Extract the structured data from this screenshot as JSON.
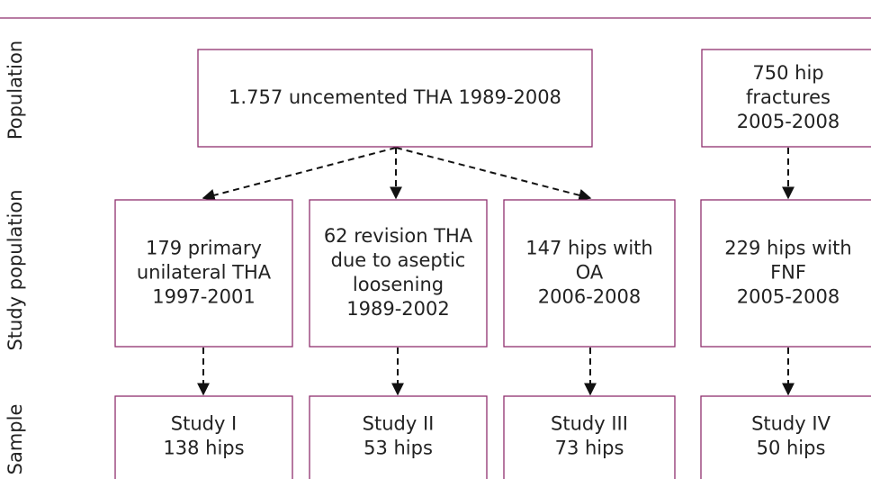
{
  "row_labels": [
    "Population",
    "Study population",
    "Sample"
  ],
  "nodes": [
    {
      "lines": [
        "1.757 uncemented THA 1989-2008"
      ]
    },
    {
      "lines": [
        "750 hip",
        "fractures",
        "2005-2008"
      ]
    },
    {
      "lines": [
        "179 primary",
        "unilateral THA",
        "1997-2001"
      ]
    },
    {
      "lines": [
        "62 revision THA",
        "due to aseptic",
        "loosening",
        "1989-2002"
      ]
    },
    {
      "lines": [
        "147 hips with",
        "OA",
        "2006-2008"
      ]
    },
    {
      "lines": [
        "229 hips with",
        "FNF",
        "2005-2008"
      ]
    },
    {
      "lines": [
        "Study I",
        "138 hips"
      ]
    },
    {
      "lines": [
        "Study II",
        "53 hips"
      ]
    },
    {
      "lines": [
        "Study III",
        "73 hips"
      ]
    },
    {
      "lines": [
        "Study IV",
        "50 hips"
      ]
    }
  ]
}
